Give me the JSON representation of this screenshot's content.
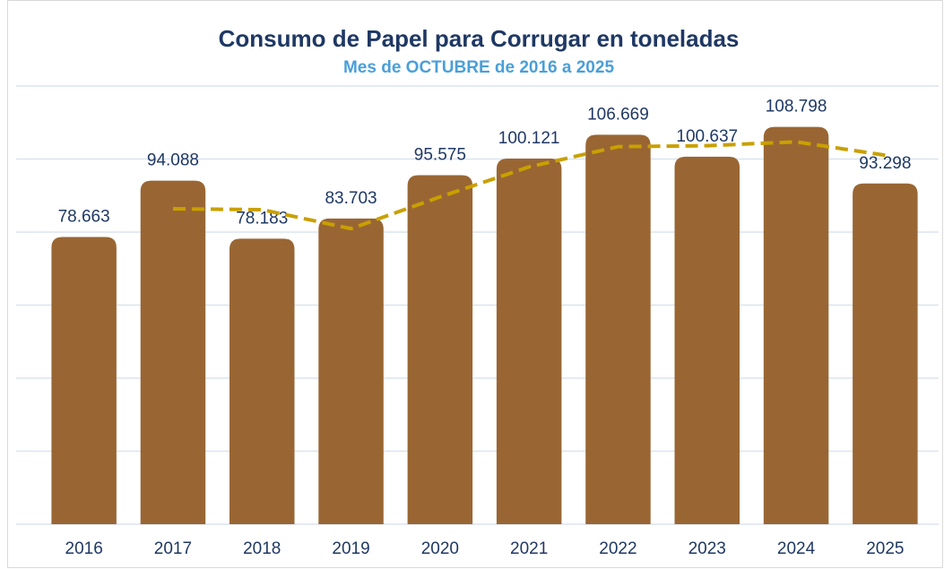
{
  "chart_data": {
    "type": "bar",
    "title": "Consumo de Papel para Corrugar en toneladas",
    "subtitle": "Mes de OCTUBRE de 2016 a 2025",
    "categories": [
      "2016",
      "2017",
      "2018",
      "2019",
      "2020",
      "2021",
      "2022",
      "2023",
      "2024",
      "2025"
    ],
    "values": [
      78663,
      94088,
      78183,
      83703,
      95575,
      100121,
      106669,
      100637,
      108798,
      93298
    ],
    "value_labels": [
      "78.663",
      "94.088",
      "78.183",
      "83.703",
      "95.575",
      "100.121",
      "106.669",
      "100.637",
      "108.798",
      "93.298"
    ],
    "color": "#996633",
    "trend": {
      "color": "#c9a000",
      "values": [
        null,
        86375.5,
        86135.5,
        80943,
        89639,
        97848,
        103395,
        103653,
        104717.5,
        101047.5
      ]
    },
    "ylim": [
      0,
      120000
    ],
    "yticks": [
      0,
      20000,
      40000,
      60000,
      80000,
      100000,
      120000
    ],
    "grid": true
  }
}
